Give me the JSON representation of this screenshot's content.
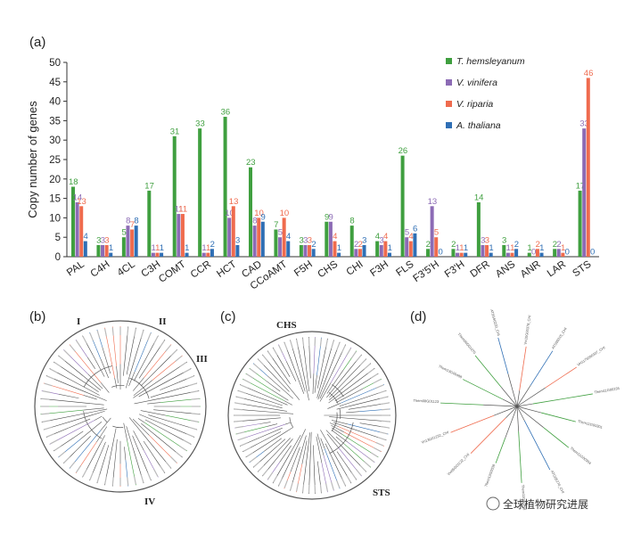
{
  "panels": {
    "a": "(a)",
    "b": "(b)",
    "c": "(c)",
    "d": "(d)"
  },
  "colors": {
    "th": "#3f9f3f",
    "vv": "#8c6bb5",
    "vr": "#ef6b4e",
    "at": "#2f6fb5"
  },
  "chart_data": {
    "type": "bar",
    "title": "",
    "ylabel": "Copy number of genes",
    "xlabel": "",
    "ylim": [
      0,
      50
    ],
    "yticks": [
      0,
      5,
      10,
      15,
      20,
      25,
      30,
      35,
      40,
      45,
      50
    ],
    "grid": false,
    "legend_position": "top-right",
    "categories": [
      "PAL",
      "C4H",
      "4CL",
      "C3H",
      "COMT",
      "CCR",
      "HCT",
      "CAD",
      "CCoAMT",
      "F5H",
      "CHS",
      "CHI",
      "F3H",
      "FLS",
      "F3'5'H",
      "F3'H",
      "DFR",
      "ANS",
      "ANR",
      "LAR",
      "STS"
    ],
    "series": [
      {
        "name": "T. hemsleyanum",
        "color": "#3f9f3f",
        "values": [
          18,
          3,
          5,
          17,
          31,
          33,
          36,
          23,
          7,
          3,
          9,
          8,
          4,
          26,
          2,
          2,
          14,
          3,
          1,
          2,
          17
        ]
      },
      {
        "name": "V. vinifera",
        "color": "#8c6bb5",
        "values": [
          14,
          3,
          8,
          1,
          11,
          1,
          10,
          8,
          5,
          3,
          9,
          2,
          3,
          5,
          13,
          1,
          3,
          1,
          0,
          2,
          33
        ]
      },
      {
        "name": "V. riparia",
        "color": "#ef6b4e",
        "values": [
          13,
          3,
          7,
          1,
          11,
          1,
          13,
          10,
          10,
          3,
          4,
          2,
          4,
          4,
          5,
          1,
          3,
          1,
          2,
          1,
          46
        ]
      },
      {
        "name": "A. thaliana",
        "color": "#2f6fb5",
        "values": [
          4,
          1,
          8,
          1,
          1,
          2,
          3,
          9,
          4,
          2,
          1,
          3,
          1,
          6,
          0,
          1,
          1,
          2,
          1,
          0,
          0
        ]
      }
    ]
  },
  "trees": {
    "b": {
      "clades": [
        "I",
        "II",
        "III",
        "IV"
      ]
    },
    "c": {
      "clades": [
        "CHS",
        "STS"
      ]
    },
    "d": {
      "leaves": [
        "Vvi10G00378_CHI",
        "ATS00315_CHI",
        "VH1176090337_CHI",
        "Them11G00235",
        "Them11G00301",
        "Them11G00304",
        "ATG05270_CHI",
        "Them11G00238",
        "Them13G0038",
        "Vvi05G01122_CHI",
        "Vri13G01232_CHI",
        "Them08G01123",
        "Them13G00488",
        "Them06G01070",
        "AT5G66220_CHI"
      ]
    }
  },
  "watermark": "全球植物研究进展"
}
